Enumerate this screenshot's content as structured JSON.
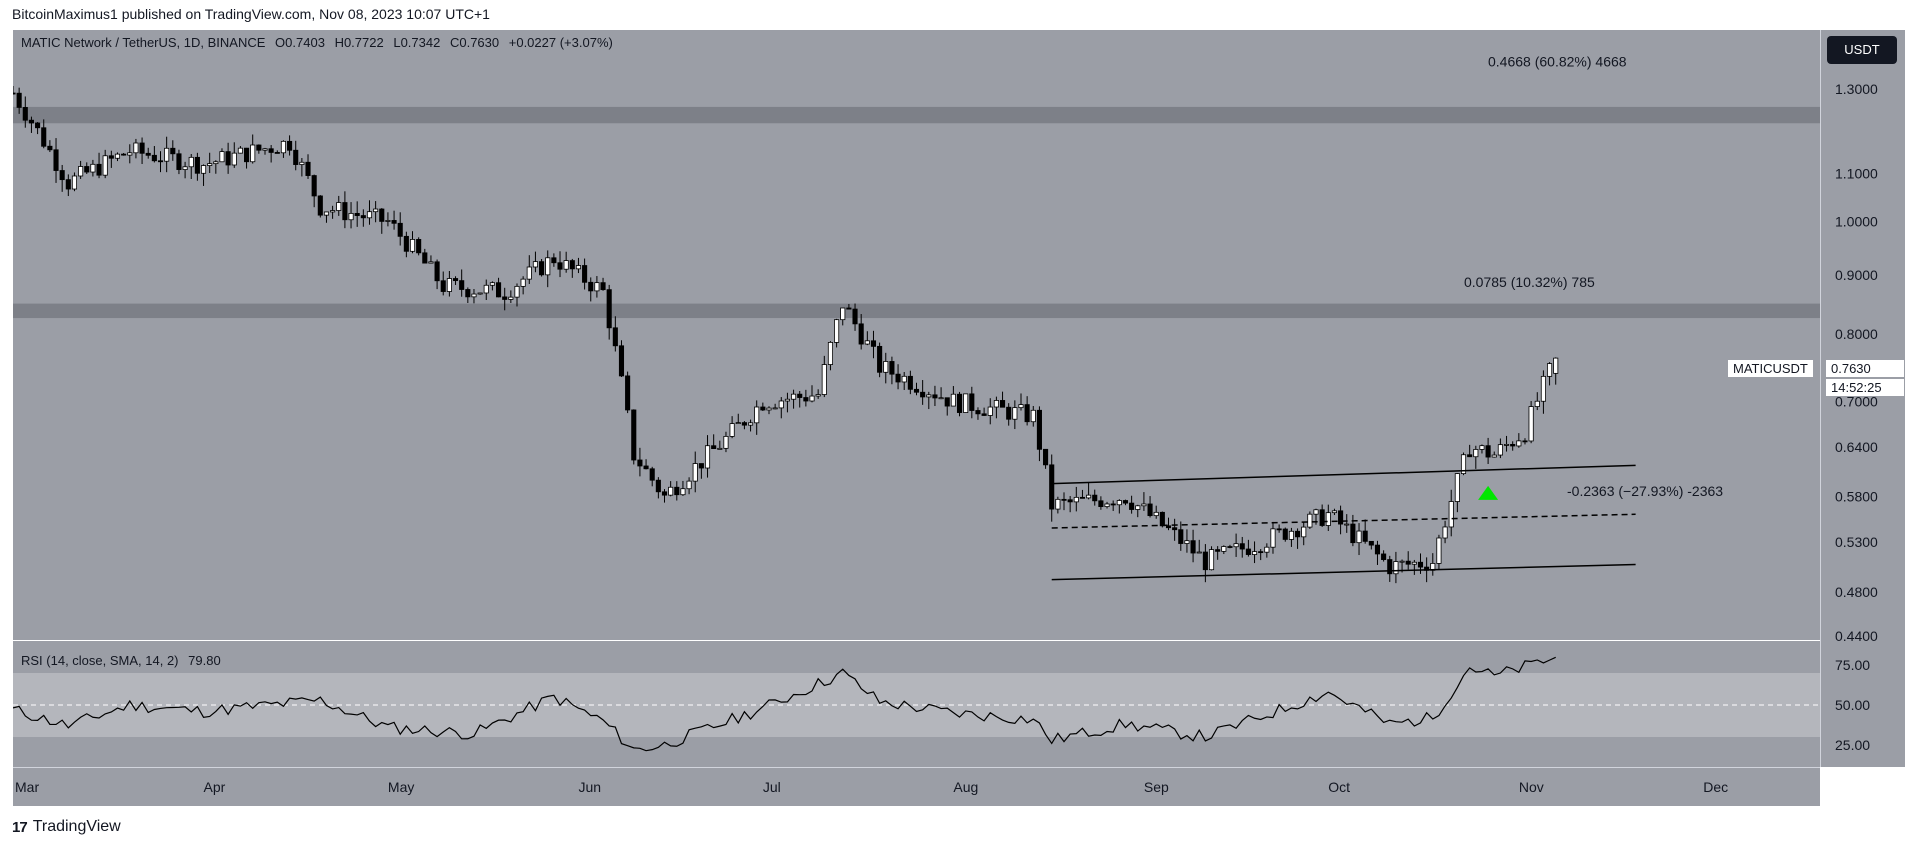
{
  "header": {
    "publisher_line": "BitcoinMaximus1 published on TradingView.com, Nov 08, 2023 10:07 UTC+1"
  },
  "footer": {
    "brand": "TradingView",
    "logo_text": "17"
  },
  "legend": {
    "symbol": "MATIC Network / TetherUS, 1D, BINANCE",
    "open_label": "O",
    "open": "0.7403",
    "high_label": "H",
    "high": "0.7722",
    "low_label": "L",
    "low": "0.7342",
    "close_label": "C",
    "close": "0.7630",
    "change": "+0.0227 (+3.07%)"
  },
  "currency_button": "USDT",
  "price_label": {
    "symbol": "MATICUSDT",
    "price": "0.7630",
    "countdown": "14:52:25"
  },
  "measurements": [
    {
      "text": "0.4668 (60.82%) 4668",
      "price": 1.37
    },
    {
      "text": "0.0785 (10.32%) 785",
      "price": 0.885
    },
    {
      "text": "-0.2363 (−27.93%) -2363",
      "price": 0.585
    }
  ],
  "rsi_legend": {
    "label": "RSI (14, close, SMA, 14, 2)",
    "value": "79.80"
  },
  "colors": {
    "background": "#9b9ea6",
    "up_candle": "#ffffff",
    "down_candle": "#000000",
    "resistance_zone": "#7d8088",
    "rsi_band": "#b4b6bc",
    "signal_arrow": "#00e600"
  },
  "chart_data": [
    {
      "type": "candlestick",
      "title": "MATIC Network / TetherUS, 1D, BINANCE",
      "y_scale": "log",
      "ylim": [
        0.44,
        1.45
      ],
      "y_ticks": [
        "1.3000",
        "1.1000",
        "1.0000",
        "0.9000",
        "0.8000",
        "0.7000",
        "0.6400",
        "0.5800",
        "0.5300",
        "0.4800",
        "0.4400"
      ],
      "x_ticks": [
        "Mar",
        "Apr",
        "May",
        "Jun",
        "Jul",
        "Aug",
        "Sep",
        "Oct",
        "Nov",
        "Dec"
      ],
      "x_range": [
        "2023-03-01",
        "2023-12-20"
      ],
      "resistance_zones": [
        {
          "low": 1.215,
          "high": 1.255
        },
        {
          "low": 0.826,
          "high": 0.85
        }
      ],
      "channel": {
        "upper": [
          [
            "2023-08-17",
            0.595
          ],
          [
            "2023-11-20",
            0.617
          ]
        ],
        "middle": [
          [
            "2023-08-17",
            0.545
          ],
          [
            "2023-11-20",
            0.56
          ]
        ],
        "lower": [
          [
            "2023-08-17",
            0.492
          ],
          [
            "2023-11-20",
            0.507
          ]
        ]
      },
      "breakout_arrow": {
        "date": "2023-10-27",
        "price": 0.59
      },
      "key_points": [
        [
          "2023-03-01",
          1.29
        ],
        [
          "2023-03-10",
          1.08
        ],
        [
          "2023-03-20",
          1.15
        ],
        [
          "2023-04-01",
          1.12
        ],
        [
          "2023-04-15",
          1.17
        ],
        [
          "2023-04-20",
          1.03
        ],
        [
          "2023-05-01",
          1.0
        ],
        [
          "2023-05-10",
          0.88
        ],
        [
          "2023-05-20",
          0.87
        ],
        [
          "2023-05-28",
          0.93
        ],
        [
          "2023-06-05",
          0.87
        ],
        [
          "2023-06-10",
          0.63
        ],
        [
          "2023-06-15",
          0.58
        ],
        [
          "2023-06-25",
          0.65
        ],
        [
          "2023-07-01",
          0.7
        ],
        [
          "2023-07-10",
          0.71
        ],
        [
          "2023-07-14",
          0.85
        ],
        [
          "2023-07-20",
          0.75
        ],
        [
          "2023-08-01",
          0.7
        ],
        [
          "2023-08-14",
          0.68
        ],
        [
          "2023-08-17",
          0.57
        ],
        [
          "2023-08-29",
          0.58
        ],
        [
          "2023-09-11",
          0.51
        ],
        [
          "2023-09-20",
          0.53
        ],
        [
          "2023-10-01",
          0.56
        ],
        [
          "2023-10-11",
          0.505
        ],
        [
          "2023-10-18",
          0.51
        ],
        [
          "2023-10-24",
          0.64
        ],
        [
          "2023-10-28",
          0.63
        ],
        [
          "2023-11-02",
          0.66
        ],
        [
          "2023-11-07",
          0.763
        ]
      ]
    },
    {
      "type": "line",
      "title": "RSI (14, close, SMA, 14, 2)",
      "ylim": [
        15,
        85
      ],
      "y_ticks": [
        "75.00",
        "50.00",
        "25.00"
      ],
      "band": [
        30,
        70
      ],
      "midline": 50,
      "key_points": [
        [
          "2023-03-01",
          47
        ],
        [
          "2023-03-10",
          37
        ],
        [
          "2023-03-20",
          50
        ],
        [
          "2023-04-01",
          46
        ],
        [
          "2023-04-20",
          53
        ],
        [
          "2023-05-01",
          36
        ],
        [
          "2023-05-15",
          32
        ],
        [
          "2023-05-28",
          55
        ],
        [
          "2023-06-05",
          40
        ],
        [
          "2023-06-10",
          22
        ],
        [
          "2023-06-15",
          25
        ],
        [
          "2023-07-01",
          48
        ],
        [
          "2023-07-14",
          70
        ],
        [
          "2023-07-20",
          52
        ],
        [
          "2023-08-01",
          45
        ],
        [
          "2023-08-14",
          41
        ],
        [
          "2023-08-17",
          28
        ],
        [
          "2023-08-29",
          38
        ],
        [
          "2023-09-11",
          30
        ],
        [
          "2023-10-01",
          58
        ],
        [
          "2023-10-11",
          38
        ],
        [
          "2023-10-18",
          42
        ],
        [
          "2023-10-24",
          74
        ],
        [
          "2023-10-28",
          68
        ],
        [
          "2023-11-07",
          79.8
        ]
      ]
    }
  ]
}
